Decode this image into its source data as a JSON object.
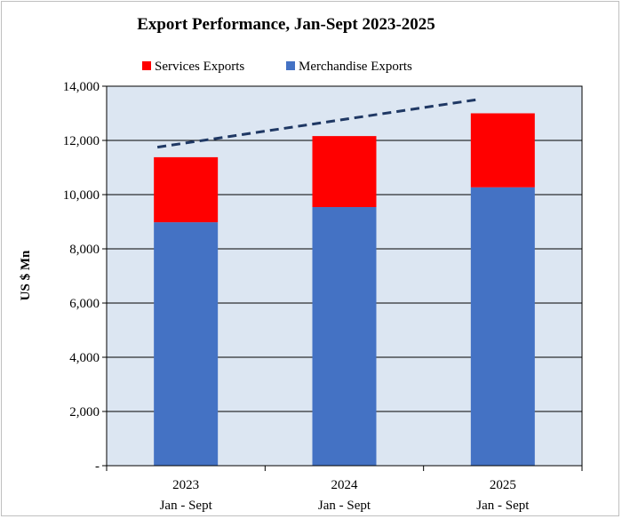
{
  "chart_data": {
    "type": "bar",
    "stacked": true,
    "title": "Export Performance, Jan-Sept  2023-2025",
    "ylabel": "US $ Mn",
    "xlabel": "",
    "categories": [
      {
        "year": "2023",
        "period": "Jan - Sept"
      },
      {
        "year": "2024",
        "period": "Jan - Sept"
      },
      {
        "year": "2025",
        "period": "Jan - Sept"
      }
    ],
    "series": [
      {
        "name": "Merchandise Exports",
        "color": "#4472C4",
        "values": [
          8980,
          9540,
          10270
        ]
      },
      {
        "name": "Services Exports",
        "color": "#FF0000",
        "values": [
          2400,
          2620,
          2730
        ]
      }
    ],
    "trend_line": {
      "color": "#1F3864",
      "style": "dashed",
      "start": 11750,
      "end": 13500
    },
    "ylim": [
      0,
      14000
    ],
    "yticks": [
      "-",
      "2,000",
      "4,000",
      "6,000",
      "8,000",
      "10,000",
      "12,000",
      "14,000"
    ],
    "grid": true,
    "legend": "top",
    "plot_background": "#DCE6F2",
    "gridline_color": "#000000"
  }
}
